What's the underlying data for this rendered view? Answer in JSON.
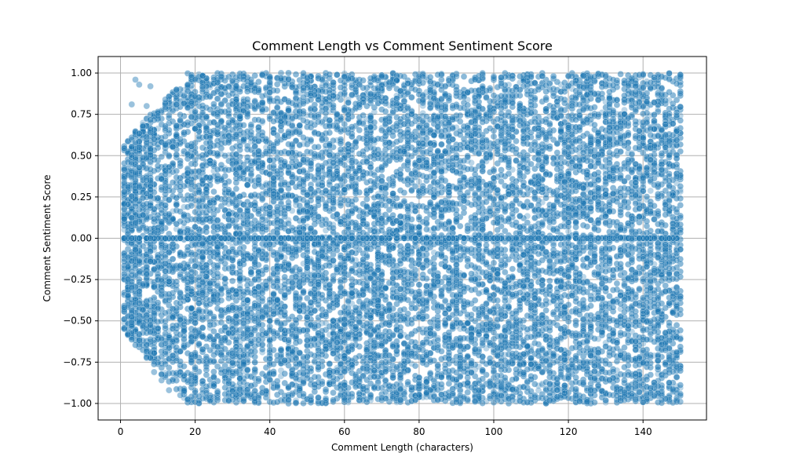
{
  "chart_data": {
    "type": "scatter",
    "title": "Comment Length vs Comment Sentiment Score",
    "xlabel": "Comment Length (characters)",
    "ylabel": "Comment Sentiment Score",
    "xlim": [
      -6,
      157
    ],
    "ylim": [
      -1.1,
      1.1
    ],
    "xticks": [
      0,
      20,
      40,
      60,
      80,
      100,
      120,
      140
    ],
    "xtick_labels": [
      "0",
      "20",
      "40",
      "60",
      "80",
      "100",
      "120",
      "140"
    ],
    "yticks": [
      1.0,
      0.75,
      0.5,
      0.25,
      0.0,
      -0.25,
      -0.5,
      -0.75,
      -1.0
    ],
    "ytick_labels": [
      "1.00",
      "0.75",
      "0.50",
      "0.25",
      "0.00",
      "−0.25",
      "−0.50",
      "−0.75",
      "−1.00"
    ],
    "grid": true,
    "series": [
      {
        "marker_color": "#1f77b4",
        "marker_edge_color": "#ffffff",
        "alpha": 0.3,
        "x_range": [
          1,
          150
        ],
        "y_range": [
          -1.0,
          1.0
        ],
        "points": [
          [
            1,
            0.0
          ],
          [
            2,
            0.46
          ],
          [
            2,
            -0.47
          ],
          [
            3,
            0.0
          ],
          [
            3,
            0.81
          ],
          [
            3,
            -0.3
          ],
          [
            4,
            0.96
          ],
          [
            4,
            -0.07
          ],
          [
            4,
            0.58
          ],
          [
            5,
            0.93
          ],
          [
            5,
            -0.43
          ],
          [
            5,
            0.31
          ],
          [
            6,
            0.14
          ],
          [
            6,
            -0.62
          ],
          [
            7,
            0.8
          ],
          [
            7,
            -0.72
          ],
          [
            8,
            0.92
          ],
          [
            8,
            0.0
          ],
          [
            9,
            -0.81
          ],
          [
            10,
            0.74
          ],
          [
            11,
            -0.86
          ],
          [
            12,
            0.84
          ],
          [
            13,
            -0.92
          ],
          [
            15,
            0.9
          ],
          [
            16,
            -0.95
          ],
          [
            18,
            0.93
          ],
          [
            20,
            0.96
          ],
          [
            22,
            -0.97
          ],
          [
            25,
            0.96
          ],
          [
            27,
            0.98
          ],
          [
            30,
            -0.95
          ],
          [
            33,
            0.96
          ],
          [
            36,
            -0.97
          ],
          [
            40,
            0.97
          ],
          [
            43,
            1.0
          ],
          [
            45,
            -0.98
          ],
          [
            50,
            0.97
          ],
          [
            55,
            -0.97
          ],
          [
            60,
            0.98
          ],
          [
            65,
            -0.98
          ],
          [
            70,
            0.98
          ],
          [
            75,
            -0.98
          ],
          [
            80,
            0.98
          ],
          [
            85,
            -0.98
          ],
          [
            90,
            0.98
          ],
          [
            95,
            -0.99
          ],
          [
            100,
            0.98
          ],
          [
            105,
            -0.98
          ],
          [
            110,
            0.98
          ],
          [
            115,
            -0.98
          ],
          [
            120,
            0.98
          ],
          [
            125,
            -0.99
          ],
          [
            130,
            0.98
          ],
          [
            135,
            -0.98
          ],
          [
            140,
            0.99
          ],
          [
            145,
            -0.98
          ],
          [
            150,
            0.99
          ],
          [
            150,
            -0.99
          ]
        ]
      }
    ]
  }
}
